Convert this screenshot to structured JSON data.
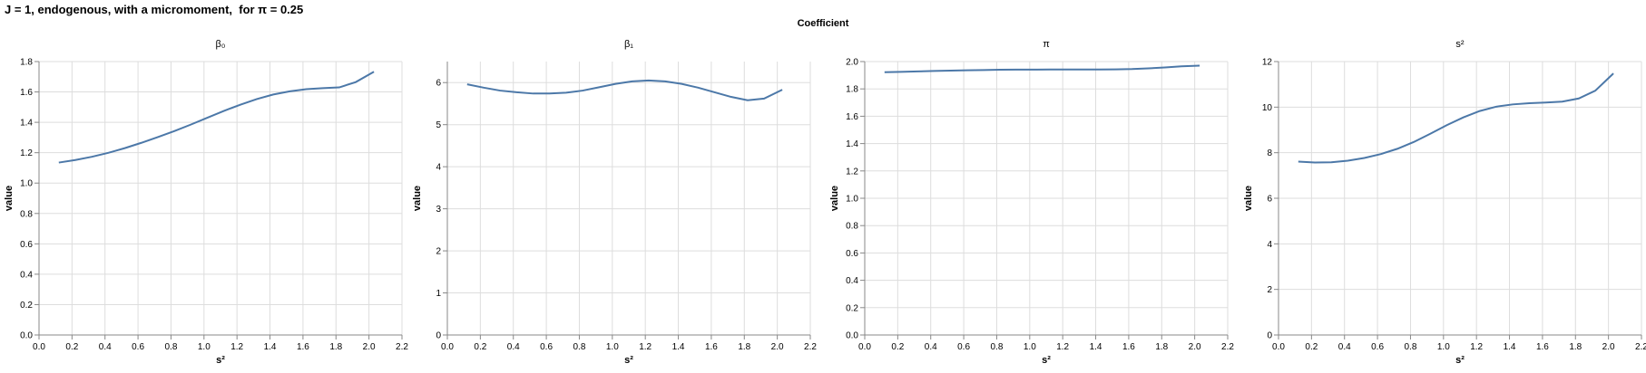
{
  "title": "J = 1, endogenous, with a micromoment,  for π = 0.25",
  "facet_header": "Coefficient",
  "colors": {
    "line": "#4c78a8",
    "grid": "#dddddd",
    "axis": "#888888"
  },
  "chart_data": [
    {
      "type": "line",
      "title": "β₀",
      "xlabel": "s²",
      "ylabel": "value",
      "xlim": [
        0,
        2.2
      ],
      "ylim": [
        0,
        1.8
      ],
      "grid": true,
      "xticks": [
        "0.0",
        "0.2",
        "0.4",
        "0.6",
        "0.8",
        "1.0",
        "1.2",
        "1.4",
        "1.6",
        "1.8",
        "2.0",
        "2.2"
      ],
      "yticks": [
        "0.0",
        "0.2",
        "0.4",
        "0.6",
        "0.8",
        "1.0",
        "1.2",
        "1.4",
        "1.6",
        "1.8"
      ],
      "x": [
        0.12,
        0.22,
        0.32,
        0.42,
        0.52,
        0.62,
        0.72,
        0.82,
        0.92,
        1.02,
        1.12,
        1.22,
        1.32,
        1.42,
        1.52,
        1.62,
        1.72,
        1.82,
        1.92,
        2.03
      ],
      "y": [
        1.135,
        1.152,
        1.173,
        1.199,
        1.23,
        1.265,
        1.303,
        1.342,
        1.385,
        1.43,
        1.475,
        1.516,
        1.553,
        1.583,
        1.604,
        1.618,
        1.625,
        1.63,
        1.665,
        1.733
      ]
    },
    {
      "type": "line",
      "title": "β₁",
      "xlabel": "s²",
      "ylabel": "value",
      "xlim": [
        0,
        2.2
      ],
      "ylim": [
        0,
        6.5
      ],
      "grid": true,
      "xticks": [
        "0.0",
        "0.2",
        "0.4",
        "0.6",
        "0.8",
        "1.0",
        "1.2",
        "1.4",
        "1.6",
        "1.8",
        "2.0",
        "2.2"
      ],
      "yticks": [
        "0",
        "1",
        "2",
        "3",
        "4",
        "5",
        "6"
      ],
      "x": [
        0.12,
        0.22,
        0.32,
        0.42,
        0.52,
        0.62,
        0.72,
        0.82,
        0.92,
        1.02,
        1.12,
        1.22,
        1.32,
        1.42,
        1.52,
        1.62,
        1.72,
        1.82,
        1.92,
        2.03
      ],
      "y": [
        5.96,
        5.88,
        5.81,
        5.77,
        5.74,
        5.74,
        5.76,
        5.81,
        5.89,
        5.97,
        6.03,
        6.05,
        6.03,
        5.97,
        5.88,
        5.77,
        5.66,
        5.58,
        5.62,
        5.83
      ]
    },
    {
      "type": "line",
      "title": "π",
      "xlabel": "s²",
      "ylabel": "value",
      "xlim": [
        0,
        2.2
      ],
      "ylim": [
        0,
        2.0
      ],
      "grid": true,
      "xticks": [
        "0.0",
        "0.2",
        "0.4",
        "0.6",
        "0.8",
        "1.0",
        "1.2",
        "1.4",
        "1.6",
        "1.8",
        "2.0",
        "2.2"
      ],
      "yticks": [
        "0.0",
        "0.2",
        "0.4",
        "0.6",
        "0.8",
        "1.0",
        "1.2",
        "1.4",
        "1.6",
        "1.8",
        "2.0"
      ],
      "x": [
        0.12,
        0.22,
        0.32,
        0.42,
        0.52,
        0.62,
        0.72,
        0.82,
        0.92,
        1.02,
        1.12,
        1.22,
        1.32,
        1.42,
        1.52,
        1.62,
        1.72,
        1.82,
        1.92,
        2.03
      ],
      "y": [
        1.922,
        1.925,
        1.928,
        1.931,
        1.934,
        1.936,
        1.938,
        1.94,
        1.941,
        1.941,
        1.942,
        1.942,
        1.942,
        1.942,
        1.943,
        1.945,
        1.95,
        1.957,
        1.965,
        1.97
      ]
    },
    {
      "type": "line",
      "title": "s²",
      "xlabel": "s²",
      "ylabel": "value",
      "xlim": [
        0,
        2.2
      ],
      "ylim": [
        0,
        12
      ],
      "grid": true,
      "xticks": [
        "0.0",
        "0.2",
        "0.4",
        "0.6",
        "0.8",
        "1.0",
        "1.2",
        "1.4",
        "1.6",
        "1.8",
        "2.0",
        "2.2"
      ],
      "yticks": [
        "0",
        "2",
        "4",
        "6",
        "8",
        "10",
        "12"
      ],
      "x": [
        0.12,
        0.22,
        0.32,
        0.42,
        0.52,
        0.62,
        0.72,
        0.82,
        0.92,
        1.02,
        1.12,
        1.22,
        1.32,
        1.42,
        1.52,
        1.62,
        1.72,
        1.82,
        1.92,
        2.03
      ],
      "y": [
        7.61,
        7.57,
        7.58,
        7.65,
        7.77,
        7.94,
        8.17,
        8.47,
        8.83,
        9.21,
        9.55,
        9.83,
        10.02,
        10.12,
        10.17,
        10.2,
        10.24,
        10.38,
        10.72,
        11.48
      ]
    }
  ]
}
